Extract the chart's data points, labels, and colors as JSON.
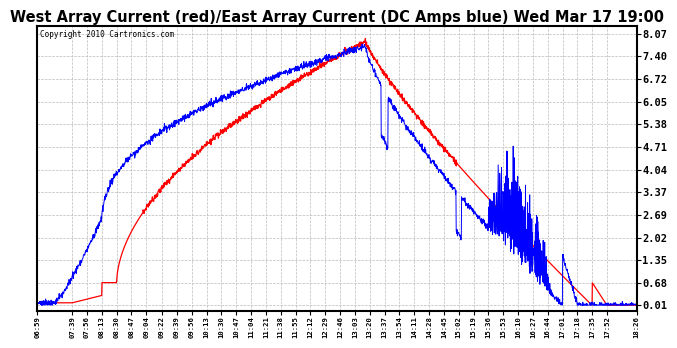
{
  "title": "West Array Current (red)/East Array Current (DC Amps blue) Wed Mar 17 19:00",
  "copyright": "Copyright 2010 Cartronics.com",
  "yticks": [
    0.01,
    0.68,
    1.35,
    2.02,
    2.69,
    3.37,
    4.04,
    4.71,
    5.38,
    6.05,
    6.72,
    7.4,
    8.07
  ],
  "ymin": 0.01,
  "ymax": 8.07,
  "background_color": "#ffffff",
  "plot_bg_color": "#ffffff",
  "grid_color": "#bbbbbb",
  "title_fontsize": 10.5,
  "x_labels": [
    "06:59",
    "07:39",
    "07:56",
    "08:13",
    "08:30",
    "08:47",
    "09:04",
    "09:22",
    "09:39",
    "09:56",
    "10:13",
    "10:30",
    "10:47",
    "11:04",
    "11:21",
    "11:38",
    "11:55",
    "12:12",
    "12:29",
    "12:46",
    "13:03",
    "13:20",
    "13:37",
    "13:54",
    "14:11",
    "14:28",
    "14:45",
    "15:02",
    "15:19",
    "15:36",
    "15:53",
    "16:10",
    "16:27",
    "16:44",
    "17:01",
    "17:18",
    "17:35",
    "17:52",
    "18:26"
  ]
}
